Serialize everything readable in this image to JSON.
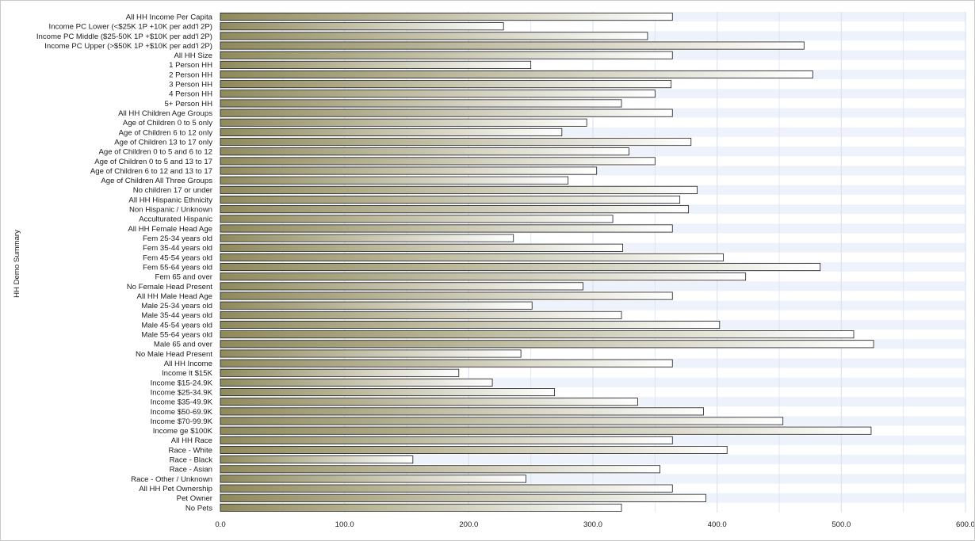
{
  "chart_data": {
    "type": "bar",
    "orientation": "horizontal",
    "ylabel": "HH Demo Summary",
    "xlabel": "",
    "xlim": [
      0,
      600
    ],
    "xticks": [
      "0.0",
      "100.0",
      "200.0",
      "300.0",
      "400.0",
      "500.0",
      "600.0"
    ],
    "grid": true,
    "legend": "none",
    "colors": {
      "bar_dark": "#8f8a5c",
      "bar_light": "#ffffff",
      "band_light": "#eef2fa",
      "band_white": "#ffffff",
      "grid": "#dbe3f3",
      "bar_stroke": "#1a1a1a"
    },
    "categories": [
      "All HH Income Per Capita",
      "Income PC Lower (<$25K 1P +10K per add'l 2P)",
      "Income PC Middle ($25-50K 1P +$10K per add'l 2P)",
      "Income PC Upper (>$50K 1P +$10K per add'l 2P)",
      "All HH Size",
      "1 Person HH",
      "2 Person HH",
      "3 Person HH",
      "4 Person HH",
      "5+ Person HH",
      "All HH Children Age Groups",
      "Age of Children 0 to 5 only",
      "Age of Children 6 to 12 only",
      "Age of Children 13 to 17 only",
      "Age of Children 0 to 5 and 6 to 12",
      "Age of Children 0 to 5 and 13 to 17",
      "Age of Children 6 to 12 and 13 to 17",
      "Age of Children All Three Groups",
      "No children 17 or under",
      "All HH Hispanic Ethnicity",
      "Non Hispanic / Unknown",
      "Acculturated Hispanic",
      "All HH Female Head Age",
      "Fem 25-34 years old",
      "Fem 35-44 years old",
      "Fem 45-54 years old",
      "Fem 55-64 years old",
      "Fem 65 and over",
      "No Female Head Present",
      "All HH Male Head Age",
      "Male 25-34 years old",
      "Male 35-44 years old",
      "Male 45-54 years old",
      "Male 55-64 years old",
      "Male 65 and over",
      "No Male Head Present",
      "All HH Income",
      "Income lt $15K",
      "Income $15-24.9K",
      "Income $25-34.9K",
      "Income $35-49.9K",
      "Income $50-69.9K",
      "Income $70-99.9K",
      "Income ge $100K",
      "All HH Race",
      "Race - White",
      "Race - Black",
      "Race - Asian",
      "Race - Other / Unknown",
      "All HH Pet Ownership",
      "Pet Owner",
      "No Pets"
    ],
    "series": [
      {
        "values": [
          364,
          228,
          344,
          470,
          364,
          250,
          477,
          363,
          350,
          323,
          364,
          295,
          275,
          379,
          329,
          350,
          303,
          280,
          384,
          370,
          377,
          316,
          364,
          236,
          324,
          405,
          483,
          423,
          292,
          364,
          251,
          323,
          402,
          510,
          526,
          242,
          364,
          192,
          219,
          269,
          336,
          389,
          453,
          524,
          364,
          408,
          155,
          354,
          246,
          364,
          391,
          323
        ]
      }
    ]
  }
}
